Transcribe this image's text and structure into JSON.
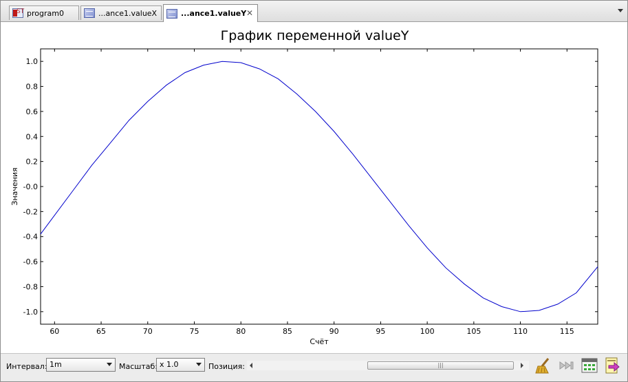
{
  "tabs": [
    {
      "label": "program0",
      "icon": "st-program-icon",
      "icon_text": "ST",
      "active": false
    },
    {
      "label": "...ance1.valueX",
      "icon": "graph-icon",
      "active": false
    },
    {
      "label": "...ance1.valueY",
      "icon": "graph-icon",
      "active": true
    }
  ],
  "tab_close_glyph": "✕",
  "toolbar": {
    "interval_label": "Интервал:",
    "interval_value": "1m",
    "scale_label": "Масштаб:",
    "scale_value": "x 1.0",
    "position_label": "Позиция:",
    "scroll_thumb_grip": "|||",
    "buttons": [
      "clear-broom-icon",
      "skip-to-end-icon",
      "grid-settings-icon",
      "export-icon"
    ]
  },
  "chart_data": {
    "type": "line",
    "title": "График переменной valueY",
    "xlabel": "Счёт",
    "ylabel": "Значения",
    "xlim": [
      58.5,
      118.3
    ],
    "ylim": [
      -1.1,
      1.1
    ],
    "x_ticks": [
      60,
      65,
      70,
      75,
      80,
      85,
      90,
      95,
      100,
      105,
      110,
      115
    ],
    "x_tick_labels": [
      "60",
      "65",
      "70",
      "75",
      "80",
      "85",
      "90",
      "95",
      "100",
      "105",
      "110",
      "115"
    ],
    "y_ticks": [
      1.0,
      0.8,
      0.6,
      0.4,
      0.2,
      0.0,
      -0.2,
      -0.4,
      -0.6,
      -0.8,
      -1.0
    ],
    "y_tick_labels": [
      "1.0",
      "0.8",
      "0.6",
      "0.4",
      "0.2",
      "-0.0",
      "-0.2",
      "-0.4",
      "-0.6",
      "-0.8",
      "-1.0"
    ],
    "grid": false,
    "series": [
      {
        "color": "#0000cc",
        "x": [
          58.5,
          60,
          62,
          64,
          66,
          68,
          70,
          72,
          74,
          76,
          78,
          80,
          82,
          84,
          86,
          88,
          90,
          92,
          94,
          96,
          98,
          100,
          102,
          104,
          106,
          108,
          110,
          112,
          114,
          116,
          118.3
        ],
        "y": [
          -0.38,
          -0.23,
          -0.03,
          0.17,
          0.35,
          0.53,
          0.68,
          0.81,
          0.91,
          0.97,
          1.0,
          0.99,
          0.94,
          0.86,
          0.74,
          0.6,
          0.44,
          0.26,
          0.07,
          -0.12,
          -0.31,
          -0.49,
          -0.65,
          -0.78,
          -0.89,
          -0.96,
          -1.0,
          -0.99,
          -0.94,
          -0.85,
          -0.64
        ]
      }
    ]
  }
}
